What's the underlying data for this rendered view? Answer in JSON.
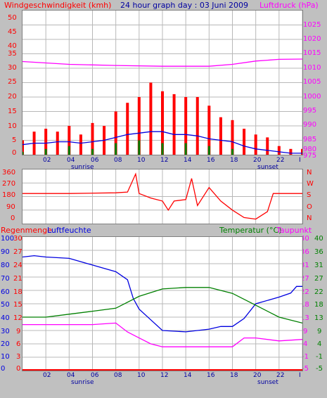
{
  "header": {
    "wind_title": "Windgeschwindigkeit (kmh)",
    "graph_title": "24 hour graph day : 03 Juni 2009",
    "pressure_title": "Luftdruck (hPa)"
  },
  "colors": {
    "background": "#c0c0c0",
    "plot": "#ffffff",
    "grid": "#b8b8b8",
    "red": "#ff0000",
    "blue": "#0000e0",
    "green": "#008000",
    "magenta": "#ff00ff"
  },
  "labels": {
    "x_ticks": [
      "02",
      "04",
      "06",
      "08",
      "10",
      "12",
      "14",
      "16",
      "18",
      "20",
      "22",
      "I"
    ],
    "sunrise": "sunrise",
    "sunset": "sunset",
    "rain": "Regenmenge",
    "humidity": "Luftfeuchte",
    "temperature": "Temperatur (°C)",
    "dewpoint": "Taupunkt",
    "wind_left": [
      "50",
      "45",
      "40",
      "35",
      "30",
      "25",
      "20",
      "15",
      "10",
      "5",
      "0"
    ],
    "pressure_right": [
      "1025",
      "1020",
      "1015",
      "1010",
      "1005",
      "1000",
      "995",
      "990",
      "985",
      "980",
      "975"
    ],
    "dir_left": [
      "360",
      "270",
      "180",
      "90",
      "0"
    ],
    "dir_right": [
      "N",
      "W",
      "S",
      "O",
      "N"
    ],
    "humidity_left": [
      "100",
      "90",
      "80",
      "70",
      "60",
      "50",
      "40",
      "30",
      "20",
      "10",
      "0"
    ],
    "rain_left": [
      "30",
      "27",
      "24",
      "21",
      "18",
      "15",
      "12",
      "9",
      "6",
      "3",
      "0"
    ],
    "temp_right": [
      "40",
      "36",
      "31",
      "27",
      "22",
      "18",
      "13",
      "9",
      "4",
      "-1",
      "-5"
    ],
    "dew_right": [
      "40",
      "36",
      "31",
      "27",
      "22",
      "18",
      "13",
      "9",
      "4",
      "-1",
      "-5"
    ]
  },
  "chart_data": [
    {
      "type": "line",
      "title": "Windgeschwindigkeit (kmh) / Luftdruck (hPa)",
      "x_unit": "hour",
      "xlim": [
        0,
        24
      ],
      "ylim_wind": [
        0,
        50
      ],
      "ylim_pressure": [
        975,
        1027
      ],
      "series": [
        {
          "name": "gust",
          "color": "#ff0000",
          "points": [
            [
              0,
              5
            ],
            [
              1,
              8
            ],
            [
              2,
              9
            ],
            [
              3,
              8
            ],
            [
              4,
              10
            ],
            [
              5,
              7
            ],
            [
              6,
              11
            ],
            [
              7,
              10
            ],
            [
              8,
              15
            ],
            [
              9,
              18
            ],
            [
              10,
              20
            ],
            [
              11,
              25
            ],
            [
              12,
              22
            ],
            [
              13,
              21
            ],
            [
              14,
              20
            ],
            [
              15,
              20
            ],
            [
              16,
              17
            ],
            [
              17,
              13
            ],
            [
              18,
              12
            ],
            [
              19,
              9
            ],
            [
              20,
              7
            ],
            [
              21,
              6
            ],
            [
              22,
              3
            ],
            [
              23,
              2
            ],
            [
              24,
              2
            ]
          ]
        },
        {
          "name": "average",
          "color": "#0000e0",
          "points": [
            [
              0,
              3.5
            ],
            [
              1,
              4
            ],
            [
              2,
              4
            ],
            [
              3,
              4.5
            ],
            [
              4,
              4.5
            ],
            [
              5,
              4
            ],
            [
              6,
              4.5
            ],
            [
              7,
              5
            ],
            [
              8,
              6
            ],
            [
              9,
              7
            ],
            [
              10,
              7.5
            ],
            [
              11,
              8
            ],
            [
              12,
              8
            ],
            [
              13,
              7
            ],
            [
              14,
              7
            ],
            [
              15,
              6.5
            ],
            [
              16,
              5.5
            ],
            [
              17,
              5
            ],
            [
              18,
              4.5
            ],
            [
              19,
              3
            ],
            [
              20,
              2
            ],
            [
              21,
              1.5
            ],
            [
              22,
              1
            ],
            [
              23,
              0.5
            ],
            [
              24,
              0.5
            ]
          ]
        },
        {
          "name": "minimum",
          "color": "#008000",
          "points": [
            [
              0,
              1
            ],
            [
              2,
              2
            ],
            [
              4,
              3
            ],
            [
              6,
              2
            ],
            [
              8,
              4
            ],
            [
              10,
              5
            ],
            [
              12,
              4
            ],
            [
              14,
              4
            ],
            [
              16,
              3
            ],
            [
              18,
              2
            ],
            [
              20,
              0
            ],
            [
              22,
              0
            ],
            [
              24,
              0
            ]
          ]
        },
        {
          "name": "pressure",
          "color": "#ff00ff",
          "points": [
            [
              0,
              1008.6
            ],
            [
              4,
              1007.6
            ],
            [
              8,
              1007.2
            ],
            [
              12,
              1006.9
            ],
            [
              16,
              1006.9
            ],
            [
              18,
              1007.6
            ],
            [
              20,
              1008.8
            ],
            [
              22,
              1009.4
            ],
            [
              24,
              1009.5
            ]
          ]
        }
      ]
    },
    {
      "type": "line",
      "title": "Windrichtung",
      "xlim": [
        0,
        24
      ],
      "ylim": [
        0,
        360
      ],
      "series": [
        {
          "name": "direction",
          "color": "#ff0000",
          "points": [
            [
              0,
              200
            ],
            [
              4,
              200
            ],
            [
              8,
              205
            ],
            [
              9,
              210
            ],
            [
              9.7,
              330
            ],
            [
              10,
              200
            ],
            [
              11,
              170
            ],
            [
              12,
              150
            ],
            [
              12.5,
              90
            ],
            [
              13,
              150
            ],
            [
              14,
              160
            ],
            [
              14.5,
              300
            ],
            [
              15,
              120
            ],
            [
              16,
              240
            ],
            [
              17,
              150
            ],
            [
              18,
              90
            ],
            [
              19,
              40
            ],
            [
              20,
              30
            ],
            [
              21,
              80
            ],
            [
              21.5,
              200
            ],
            [
              24,
              200
            ]
          ]
        }
      ]
    },
    {
      "type": "line",
      "title": "Luftfeuchte / Temperatur (°C) / Taupunkt",
      "xlim": [
        0,
        24
      ],
      "ylim_humidity": [
        0,
        100
      ],
      "ylim_temp": [
        -5,
        40
      ],
      "series": [
        {
          "name": "Luftfeuchte",
          "color": "#0000e0",
          "points": [
            [
              0,
              85
            ],
            [
              1,
              86
            ],
            [
              2,
              85
            ],
            [
              4,
              84
            ],
            [
              6,
              79
            ],
            [
              8,
              74
            ],
            [
              9,
              68
            ],
            [
              9.5,
              54
            ],
            [
              10,
              46
            ],
            [
              11,
              38
            ],
            [
              12,
              30
            ],
            [
              14,
              29
            ],
            [
              16,
              31
            ],
            [
              17,
              33
            ],
            [
              18,
              33
            ],
            [
              19,
              39
            ],
            [
              20,
              50
            ],
            [
              22,
              55
            ],
            [
              23,
              58
            ],
            [
              23.5,
              63
            ],
            [
              24,
              63
            ]
          ]
        },
        {
          "name": "Temperatur",
          "color": "#008000",
          "points": [
            [
              0,
              13
            ],
            [
              2,
              13
            ],
            [
              4,
              14
            ],
            [
              6,
              15
            ],
            [
              8,
              16
            ],
            [
              10,
              20
            ],
            [
              12,
              22.5
            ],
            [
              14,
              23
            ],
            [
              16,
              23
            ],
            [
              18,
              21
            ],
            [
              20,
              17
            ],
            [
              22,
              13
            ],
            [
              24,
              11
            ]
          ]
        },
        {
          "name": "Taupunkt",
          "color": "#ff00ff",
          "points": [
            [
              0,
              10.5
            ],
            [
              2,
              10.5
            ],
            [
              4,
              10.5
            ],
            [
              6,
              10.5
            ],
            [
              8,
              11
            ],
            [
              9,
              8
            ],
            [
              10,
              6
            ],
            [
              11,
              4
            ],
            [
              12,
              3
            ],
            [
              14,
              3
            ],
            [
              16,
              3
            ],
            [
              18,
              3
            ],
            [
              19,
              6
            ],
            [
              20,
              6
            ],
            [
              22,
              5
            ],
            [
              24,
              5.5
            ]
          ]
        }
      ]
    }
  ]
}
